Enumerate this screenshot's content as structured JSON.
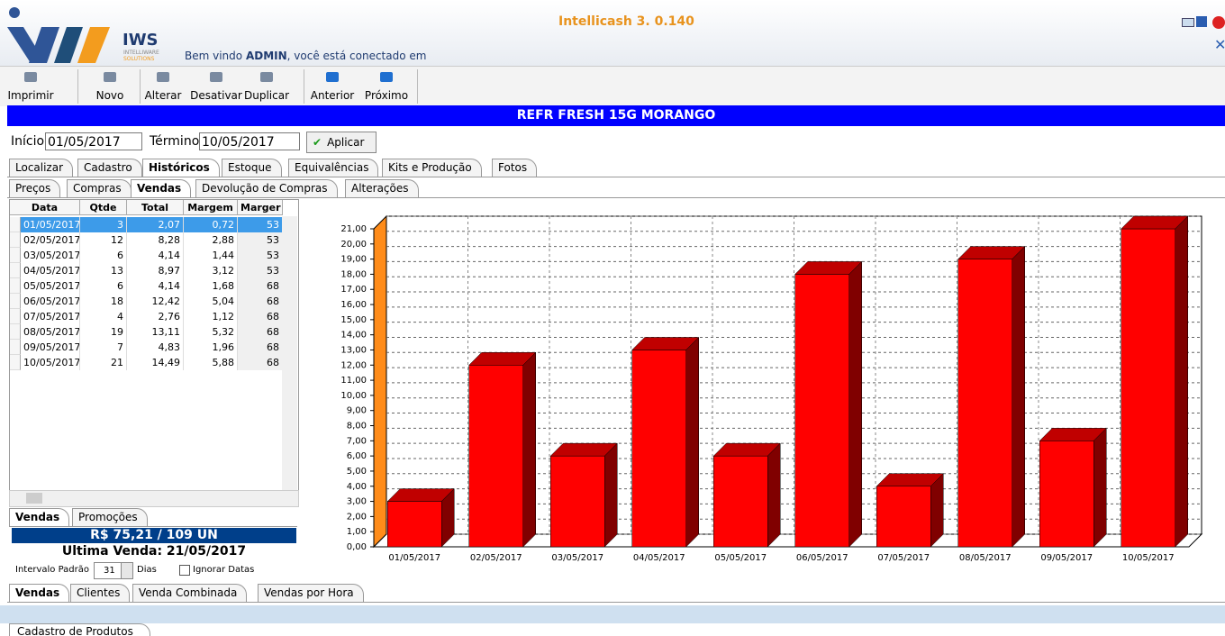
{
  "app": {
    "title": "Intellicash 3. 0.140",
    "logo": "IWS",
    "logo_sub1": "INTELLIWARE",
    "logo_sub2": "SOLUTIONS",
    "welcome_prefix": "Bem vindo",
    "user": "ADMIN",
    "welcome_suffix": ", você está conectado em"
  },
  "toolbar": [
    "Imprimir",
    "Novo",
    "Alterar",
    "Desativar",
    "Duplicar",
    "Anterior",
    "Próximo"
  ],
  "product": "REFR FRESH 15G MORANGO",
  "filter": {
    "start_label": "Início",
    "start": "01/05/2017",
    "end_label": "Término",
    "end": "10/05/2017",
    "apply": "Aplicar"
  },
  "tabs_main": [
    "Localizar",
    "Cadastro",
    "Históricos",
    "Estoque",
    "Equivalências",
    "Kits e Produção",
    "Fotos"
  ],
  "tabs_sub": [
    "Preços",
    "Compras",
    "Vendas",
    "Devolução de Compras",
    "Alterações"
  ],
  "table": {
    "columns": [
      "Data",
      "Qtde",
      "Total",
      "Margem",
      "Marger"
    ],
    "rows": [
      [
        "01/05/2017",
        "3",
        "2,07",
        "0,72",
        "53"
      ],
      [
        "02/05/2017",
        "12",
        "8,28",
        "2,88",
        "53"
      ],
      [
        "03/05/2017",
        "6",
        "4,14",
        "1,44",
        "53"
      ],
      [
        "04/05/2017",
        "13",
        "8,97",
        "3,12",
        "53"
      ],
      [
        "05/05/2017",
        "6",
        "4,14",
        "1,68",
        "68"
      ],
      [
        "06/05/2017",
        "18",
        "12,42",
        "5,04",
        "68"
      ],
      [
        "07/05/2017",
        "4",
        "2,76",
        "1,12",
        "68"
      ],
      [
        "08/05/2017",
        "19",
        "13,11",
        "5,32",
        "68"
      ],
      [
        "09/05/2017",
        "7",
        "4,83",
        "1,96",
        "68"
      ],
      [
        "10/05/2017",
        "21",
        "14,49",
        "5,88",
        "68"
      ]
    ]
  },
  "tabs_left": [
    "Vendas",
    "Promoções"
  ],
  "summary": {
    "total": "R$ 75,21 / 109 UN",
    "last_sale": "Ultima Venda: 21/05/2017",
    "interval_label": "Intervalo Padrão",
    "interval": "31",
    "days": "Dias",
    "ignore": "Ignorar Datas"
  },
  "tabs_bottom": [
    "Vendas",
    "Clientes",
    "Venda Combinada",
    "Vendas por Hora"
  ],
  "status_tab": "Cadastro de Produtos",
  "chart_data": {
    "type": "bar3d",
    "categories": [
      "01/05/2017",
      "02/05/2017",
      "03/05/2017",
      "04/05/2017",
      "05/05/2017",
      "06/05/2017",
      "07/05/2017",
      "08/05/2017",
      "09/05/2017",
      "10/05/2017"
    ],
    "values": [
      3,
      12,
      6,
      13,
      6,
      18,
      4,
      19,
      7,
      21
    ],
    "color": "#ff0000",
    "ylim": [
      0,
      21
    ],
    "yticks": [
      {
        "value": 0,
        "label": "0,00"
      },
      {
        "value": 1,
        "label": "1,00"
      },
      {
        "value": 2,
        "label": "2,00"
      },
      {
        "value": 3,
        "label": "3,00"
      },
      {
        "value": 4,
        "label": "4,00"
      },
      {
        "value": 5,
        "label": "5,00"
      },
      {
        "value": 6,
        "label": "6,00"
      },
      {
        "value": 7,
        "label": "7,00"
      },
      {
        "value": 8,
        "label": "8,00"
      },
      {
        "value": 9,
        "label": "9,00"
      },
      {
        "value": 10,
        "label": "10,00"
      },
      {
        "value": 11,
        "label": "11,00"
      },
      {
        "value": 12,
        "label": "12,00"
      },
      {
        "value": 13,
        "label": "13,00"
      },
      {
        "value": 14,
        "label": "14,00"
      },
      {
        "value": 15,
        "label": "15,00"
      },
      {
        "value": 16,
        "label": "16,00"
      },
      {
        "value": 17,
        "label": "17,00"
      },
      {
        "value": 18,
        "label": "18,00"
      },
      {
        "value": 19,
        "label": "19,00"
      },
      {
        "value": 20,
        "label": "20,00"
      },
      {
        "value": 21,
        "label": "21,00"
      }
    ],
    "grid": true
  }
}
